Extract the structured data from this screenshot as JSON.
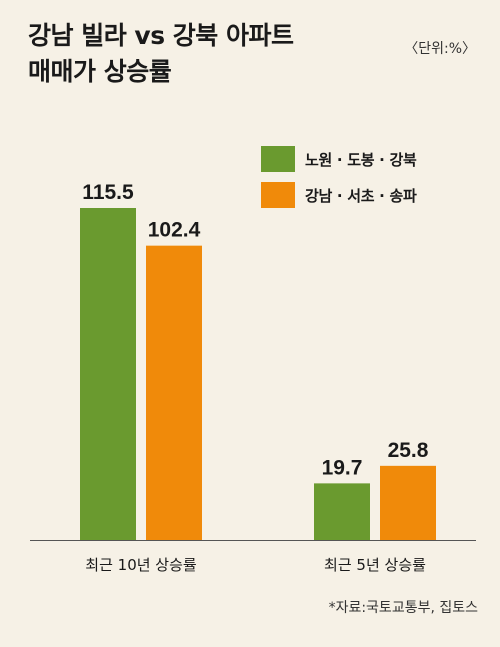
{
  "title_line1": "강남 빌라 vs 강북 아파트",
  "title_line2": "매매가 상승률",
  "unit": "〈단위:%〉",
  "source": "*자료:국토교통부, 집토스",
  "chart_data": {
    "type": "bar",
    "title": "강남 빌라 vs 강북 아파트 매매가 상승률",
    "unit": "%",
    "categories": [
      "최근 10년 상승률",
      "최근 5년 상승률"
    ],
    "series": [
      {
        "name": "노원 · 도봉 · 강북",
        "color": "#6a9a2f",
        "values": [
          115.5,
          19.7
        ]
      },
      {
        "name": "강남 · 서초 · 송파",
        "color": "#f08a0a",
        "values": [
          102.4,
          25.8
        ]
      }
    ],
    "ylim": [
      0,
      115.5
    ],
    "legend": "top-right",
    "grid": false
  }
}
